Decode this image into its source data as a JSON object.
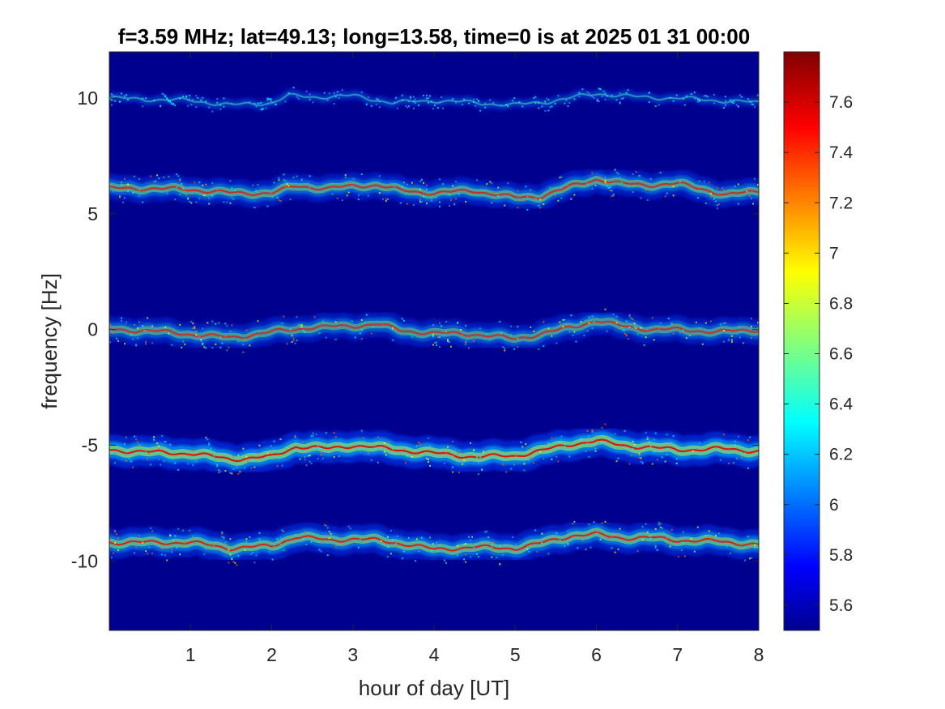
{
  "chart_data": {
    "type": "heatmap",
    "title": "f=3.59 MHz;  lat=49.13; long=13.58, time=0 is at 2025 01 31 00:00",
    "xlabel": "hour of day [UT]",
    "ylabel": "frequency [Hz]",
    "xlim": [
      0,
      8
    ],
    "ylim": [
      -13,
      12
    ],
    "xticks": [
      {
        "value": 1,
        "label": "1"
      },
      {
        "value": 2,
        "label": "2"
      },
      {
        "value": 3,
        "label": "3"
      },
      {
        "value": 4,
        "label": "4"
      },
      {
        "value": 5,
        "label": "5"
      },
      {
        "value": 6,
        "label": "6"
      },
      {
        "value": 7,
        "label": "7"
      },
      {
        "value": 8,
        "label": "8"
      }
    ],
    "yticks": [
      {
        "value": 10,
        "label": "10"
      },
      {
        "value": 5,
        "label": "5"
      },
      {
        "value": 0,
        "label": "0"
      },
      {
        "value": -5,
        "label": "-5"
      },
      {
        "value": -10,
        "label": "-10"
      }
    ],
    "colorbar": {
      "colormap": "jet",
      "clim": [
        5.5,
        7.8
      ],
      "ticks": [
        {
          "value": 5.6,
          "label": "5.6"
        },
        {
          "value": 5.8,
          "label": "5.8"
        },
        {
          "value": 6.0,
          "label": "6"
        },
        {
          "value": 6.2,
          "label": "6.2"
        },
        {
          "value": 6.4,
          "label": "6.4"
        },
        {
          "value": 6.6,
          "label": "6.6"
        },
        {
          "value": 6.8,
          "label": "6.8"
        },
        {
          "value": 7.0,
          "label": "7"
        },
        {
          "value": 7.2,
          "label": "7.2"
        },
        {
          "value": 7.4,
          "label": "7.4"
        },
        {
          "value": 7.6,
          "label": "7.6"
        }
      ]
    },
    "background_color": "#00008f",
    "grid": false,
    "traces": [
      {
        "center_hz": 10,
        "intensity": 0.35,
        "spread_hz": 0.25,
        "path": [
          [
            0,
            10.0
          ],
          [
            0.5,
            9.95
          ],
          [
            1.0,
            9.9
          ],
          [
            1.5,
            9.7
          ],
          [
            2.0,
            9.8
          ],
          [
            2.2,
            10.1
          ],
          [
            2.5,
            10.05
          ],
          [
            3.0,
            10.1
          ],
          [
            3.5,
            9.8
          ],
          [
            4.0,
            9.9
          ],
          [
            4.5,
            9.8
          ],
          [
            5.0,
            9.7
          ],
          [
            5.5,
            9.9
          ],
          [
            6.0,
            10.2
          ],
          [
            6.5,
            10.05
          ],
          [
            7.0,
            10.0
          ],
          [
            7.5,
            9.9
          ],
          [
            8.0,
            9.8
          ]
        ]
      },
      {
        "center_hz": 6,
        "intensity": 0.7,
        "spread_hz": 0.5,
        "path": [
          [
            0,
            6.1
          ],
          [
            0.5,
            6.1
          ],
          [
            1.0,
            6.05
          ],
          [
            1.5,
            5.9
          ],
          [
            2.0,
            5.9
          ],
          [
            2.3,
            6.2
          ],
          [
            2.7,
            6.1
          ],
          [
            3.0,
            6.2
          ],
          [
            3.3,
            6.25
          ],
          [
            3.6,
            6.0
          ],
          [
            4.0,
            5.9
          ],
          [
            4.5,
            6.0
          ],
          [
            5.0,
            5.7
          ],
          [
            5.3,
            5.75
          ],
          [
            5.7,
            6.2
          ],
          [
            6.0,
            6.5
          ],
          [
            6.3,
            6.3
          ],
          [
            6.7,
            6.25
          ],
          [
            7.0,
            6.3
          ],
          [
            7.3,
            6.1
          ],
          [
            7.6,
            5.8
          ],
          [
            8.0,
            6.0
          ]
        ]
      },
      {
        "center_hz": 0,
        "intensity": 0.65,
        "spread_hz": 0.5,
        "path": [
          [
            0,
            0.0
          ],
          [
            0.5,
            -0.05
          ],
          [
            1.0,
            -0.2
          ],
          [
            1.5,
            -0.35
          ],
          [
            2.0,
            -0.1
          ],
          [
            2.5,
            0.1
          ],
          [
            3.0,
            0.15
          ],
          [
            3.3,
            0.25
          ],
          [
            3.6,
            -0.05
          ],
          [
            4.0,
            -0.15
          ],
          [
            4.5,
            -0.2
          ],
          [
            5.0,
            -0.4
          ],
          [
            5.3,
            -0.2
          ],
          [
            5.7,
            0.1
          ],
          [
            6.0,
            0.4
          ],
          [
            6.3,
            0.15
          ],
          [
            6.7,
            0.0
          ],
          [
            7.0,
            0.0
          ],
          [
            7.5,
            -0.1
          ],
          [
            8.0,
            0.0
          ]
        ]
      },
      {
        "center_hz": -5,
        "intensity": 0.95,
        "spread_hz": 0.6,
        "path": [
          [
            0,
            -5.2
          ],
          [
            0.5,
            -5.3
          ],
          [
            1.0,
            -5.35
          ],
          [
            1.5,
            -5.6
          ],
          [
            2.0,
            -5.5
          ],
          [
            2.3,
            -5.05
          ],
          [
            2.7,
            -5.15
          ],
          [
            3.0,
            -5.0
          ],
          [
            3.3,
            -5.1
          ],
          [
            3.7,
            -5.25
          ],
          [
            4.0,
            -5.35
          ],
          [
            4.5,
            -5.5
          ],
          [
            5.0,
            -5.45
          ],
          [
            5.3,
            -5.25
          ],
          [
            5.7,
            -4.95
          ],
          [
            6.0,
            -4.8
          ],
          [
            6.3,
            -5.0
          ],
          [
            6.7,
            -5.1
          ],
          [
            7.0,
            -5.2
          ],
          [
            7.5,
            -5.15
          ],
          [
            8.0,
            -5.25
          ]
        ]
      },
      {
        "center_hz": -9,
        "intensity": 0.8,
        "spread_hz": 0.55,
        "path": [
          [
            0,
            -9.2
          ],
          [
            0.5,
            -9.2
          ],
          [
            1.0,
            -9.2
          ],
          [
            1.5,
            -9.45
          ],
          [
            2.0,
            -9.35
          ],
          [
            2.3,
            -8.95
          ],
          [
            2.7,
            -9.1
          ],
          [
            3.0,
            -9.05
          ],
          [
            3.3,
            -9.1
          ],
          [
            3.7,
            -9.3
          ],
          [
            4.0,
            -9.5
          ],
          [
            4.5,
            -9.4
          ],
          [
            5.0,
            -9.45
          ],
          [
            5.3,
            -9.25
          ],
          [
            5.7,
            -8.9
          ],
          [
            6.0,
            -8.85
          ],
          [
            6.3,
            -9.0
          ],
          [
            6.7,
            -9.0
          ],
          [
            7.0,
            -9.1
          ],
          [
            7.5,
            -9.15
          ],
          [
            8.0,
            -9.3
          ]
        ]
      }
    ]
  }
}
